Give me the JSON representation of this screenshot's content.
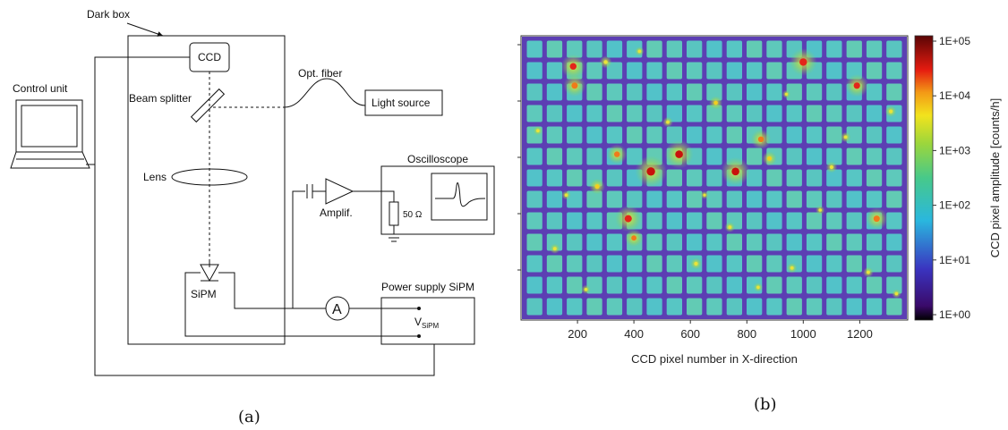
{
  "diagram": {
    "dark_box": "Dark box",
    "ccd": "CCD",
    "control_unit": "Control unit",
    "beam_splitter": "Beam splitter",
    "opt_fiber": "Opt. fiber",
    "light_source": "Light source",
    "lens": "Lens",
    "oscilloscope": "Oscilloscope",
    "amplif": "Amplif.",
    "resistor": "50 Ω",
    "sipm": "SiPM",
    "ammeter": "A",
    "power_supply": "Power supply SiPM",
    "vsipm_main": "V",
    "vsipm_sub": "SiPM"
  },
  "captions": {
    "a": "(a)",
    "b": "(b)"
  },
  "chart_data": {
    "type": "heatmap",
    "title": "",
    "xlabel": "CCD pixel number in X-direction",
    "ylabel": "",
    "xticks": [
      200,
      400,
      600,
      800,
      1000,
      1200
    ],
    "xlim": [
      0,
      1370
    ],
    "grid": {
      "cols": 19,
      "rows": 13
    },
    "colorbar": {
      "label": "CCD pixel amplitude [counts/h]",
      "scale": "log",
      "ticks": [
        "1E+05",
        "1E+04",
        "1E+03",
        "1E+02",
        "1E+01",
        "1E+00"
      ]
    },
    "hotspots": [
      {
        "x": 185,
        "row": 1.3,
        "level": 3.6
      },
      {
        "x": 190,
        "row": 2.2,
        "level": 3.4
      },
      {
        "x": 460,
        "row": 6.2,
        "level": 4.3
      },
      {
        "x": 560,
        "row": 5.4,
        "level": 4.0
      },
      {
        "x": 760,
        "row": 6.2,
        "level": 4.0
      },
      {
        "x": 380,
        "row": 8.4,
        "level": 3.8
      },
      {
        "x": 1000,
        "row": 1.1,
        "level": 3.9
      },
      {
        "x": 1190,
        "row": 2.2,
        "level": 3.5
      },
      {
        "x": 340,
        "row": 5.4,
        "level": 3.2
      },
      {
        "x": 850,
        "row": 4.7,
        "level": 3.2
      },
      {
        "x": 1260,
        "row": 8.4,
        "level": 3.4
      },
      {
        "x": 400,
        "row": 9.3,
        "level": 3.0
      },
      {
        "x": 270,
        "row": 6.9,
        "level": 2.8
      },
      {
        "x": 690,
        "row": 3.0,
        "level": 2.6
      },
      {
        "x": 880,
        "row": 5.6,
        "level": 2.7
      },
      {
        "x": 300,
        "row": 1.1,
        "level": 2.5
      },
      {
        "x": 1100,
        "row": 6.0,
        "level": 2.4
      },
      {
        "x": 120,
        "row": 9.8,
        "level": 2.3
      },
      {
        "x": 620,
        "row": 10.5,
        "level": 2.4
      },
      {
        "x": 960,
        "row": 10.7,
        "level": 2.3
      },
      {
        "x": 1310,
        "row": 3.4,
        "level": 2.4
      },
      {
        "x": 520,
        "row": 3.9,
        "level": 2.3
      },
      {
        "x": 740,
        "row": 8.8,
        "level": 2.3
      },
      {
        "x": 1150,
        "row": 4.6,
        "level": 2.3
      },
      {
        "x": 230,
        "row": 11.7,
        "level": 2.2
      },
      {
        "x": 840,
        "row": 11.6,
        "level": 2.2
      },
      {
        "x": 1230,
        "row": 10.9,
        "level": 2.3
      },
      {
        "x": 60,
        "row": 4.3,
        "level": 2.2
      },
      {
        "x": 420,
        "row": 0.6,
        "level": 2.2
      },
      {
        "x": 1060,
        "row": 8.0,
        "level": 2.2
      },
      {
        "x": 1330,
        "row": 11.9,
        "level": 2.2
      },
      {
        "x": 940,
        "row": 2.6,
        "level": 2.1
      },
      {
        "x": 160,
        "row": 7.3,
        "level": 2.2
      },
      {
        "x": 650,
        "row": 7.3,
        "level": 2.1
      }
    ]
  }
}
